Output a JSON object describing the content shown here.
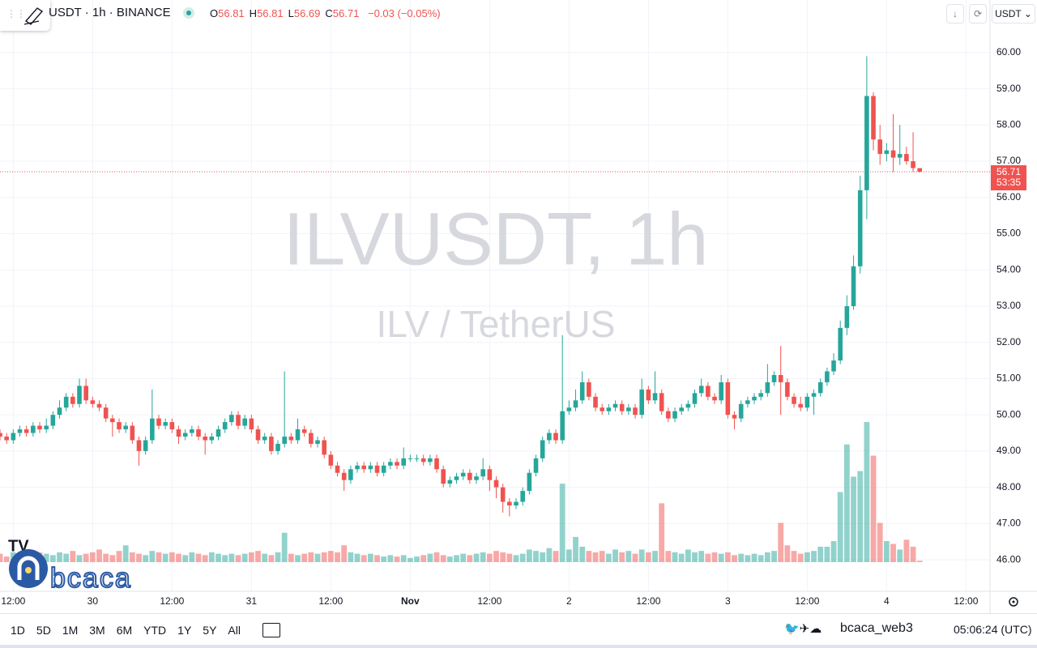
{
  "header": {
    "symbol": "USDT · 1h · BINANCE",
    "ohlc_labels": [
      "O",
      "H",
      "L",
      "C"
    ],
    "change": "−0.03 (−0.05%)",
    "currency": "USDT"
  },
  "watermark": {
    "title": "ILVUSDT, 1h",
    "subtitle": "ILV / TetherUS"
  },
  "logo": "bcaca",
  "chart_data": {
    "type": "candlestick",
    "up_color": "#26a69a",
    "down_color": "#ef5350",
    "grid": true,
    "countdown": "53:35",
    "ylim": [
      45.13,
      61.45
    ],
    "yticks": [
      {
        "value": 46,
        "label": "46.00"
      },
      {
        "value": 47,
        "label": "47.00"
      },
      {
        "value": 48,
        "label": "48.00"
      },
      {
        "value": 49,
        "label": "49.00"
      },
      {
        "value": 50,
        "label": "50.00"
      },
      {
        "value": 51,
        "label": "51.00"
      },
      {
        "value": 52,
        "label": "52.00"
      },
      {
        "value": 53,
        "label": "53.00"
      },
      {
        "value": 54,
        "label": "54.00"
      },
      {
        "value": 55,
        "label": "55.00"
      },
      {
        "value": 56,
        "label": "56.00"
      },
      {
        "value": 57,
        "label": "57.00"
      },
      {
        "value": 58,
        "label": "58.00"
      },
      {
        "value": 59,
        "label": "59.00"
      },
      {
        "value": 60,
        "label": "60.00"
      }
    ],
    "categories": [
      null,
      null,
      "12:00",
      null,
      null,
      null,
      null,
      null,
      null,
      null,
      null,
      null,
      null,
      null,
      "30",
      null,
      null,
      null,
      null,
      null,
      null,
      null,
      null,
      null,
      null,
      null,
      "12:00",
      null,
      null,
      null,
      null,
      null,
      null,
      null,
      null,
      null,
      null,
      null,
      "31",
      null,
      null,
      null,
      null,
      null,
      null,
      null,
      null,
      null,
      null,
      null,
      "12:00",
      null,
      null,
      null,
      null,
      null,
      null,
      null,
      null,
      null,
      null,
      null,
      "Nov",
      null,
      null,
      null,
      null,
      null,
      null,
      null,
      null,
      null,
      null,
      null,
      "12:00",
      null,
      null,
      null,
      null,
      null,
      null,
      null,
      null,
      null,
      null,
      null,
      "2",
      null,
      null,
      null,
      null,
      null,
      null,
      null,
      null,
      null,
      null,
      null,
      "12:00",
      null,
      null,
      null,
      null,
      null,
      null,
      null,
      null,
      null,
      null,
      null,
      "3",
      null,
      null,
      null,
      null,
      null,
      null,
      null,
      null,
      null,
      null,
      null,
      "12:00",
      null,
      null,
      null,
      null,
      null,
      null,
      null,
      null,
      null,
      null,
      null,
      "4",
      null,
      null,
      null,
      null,
      null,
      null,
      null,
      null,
      null,
      null,
      null,
      "12:00"
    ],
    "candles": [
      [
        49.5,
        49.6,
        49.3,
        49.4
      ],
      [
        49.4,
        49.5,
        49.2,
        49.3
      ],
      [
        49.3,
        49.6,
        49.2,
        49.5
      ],
      [
        49.5,
        49.7,
        49.4,
        49.6
      ],
      [
        49.6,
        49.7,
        49.4,
        49.5
      ],
      [
        49.5,
        49.8,
        49.4,
        49.7
      ],
      [
        49.7,
        49.8,
        49.5,
        49.6
      ],
      [
        49.6,
        49.9,
        49.5,
        49.7
      ],
      [
        49.7,
        50.1,
        49.6,
        50.0
      ],
      [
        50.0,
        50.4,
        49.9,
        50.2
      ],
      [
        50.2,
        50.6,
        50.1,
        50.5
      ],
      [
        50.5,
        50.6,
        50.2,
        50.3
      ],
      [
        50.3,
        51.0,
        50.2,
        50.8
      ],
      [
        50.8,
        51.0,
        50.3,
        50.4
      ],
      [
        50.4,
        50.5,
        50.2,
        50.3
      ],
      [
        50.3,
        50.4,
        50.1,
        50.2
      ],
      [
        50.2,
        50.3,
        49.8,
        49.9
      ],
      [
        49.9,
        50.0,
        49.4,
        49.8
      ],
      [
        49.8,
        49.9,
        49.5,
        49.6
      ],
      [
        49.6,
        49.8,
        49.5,
        49.7
      ],
      [
        49.7,
        49.8,
        49.2,
        49.3
      ],
      [
        49.3,
        49.4,
        48.6,
        49.0
      ],
      [
        49.0,
        49.4,
        48.9,
        49.3
      ],
      [
        49.3,
        50.7,
        49.2,
        49.9
      ],
      [
        49.9,
        50.0,
        49.6,
        49.7
      ],
      [
        49.7,
        49.9,
        49.6,
        49.8
      ],
      [
        49.8,
        49.9,
        49.5,
        49.6
      ],
      [
        49.6,
        49.7,
        49.2,
        49.4
      ],
      [
        49.4,
        49.6,
        49.3,
        49.5
      ],
      [
        49.5,
        49.7,
        49.4,
        49.6
      ],
      [
        49.6,
        49.7,
        49.3,
        49.4
      ],
      [
        49.4,
        49.5,
        48.9,
        49.3
      ],
      [
        49.3,
        49.5,
        49.2,
        49.4
      ],
      [
        49.4,
        49.7,
        49.3,
        49.6
      ],
      [
        49.6,
        49.9,
        49.5,
        49.8
      ],
      [
        49.8,
        50.1,
        49.7,
        50.0
      ],
      [
        50.0,
        50.1,
        49.6,
        49.7
      ],
      [
        49.7,
        50.0,
        49.6,
        49.9
      ],
      [
        49.9,
        50.0,
        49.5,
        49.6
      ],
      [
        49.6,
        49.7,
        49.2,
        49.3
      ],
      [
        49.3,
        49.5,
        49.2,
        49.4
      ],
      [
        49.4,
        49.5,
        48.9,
        49.0
      ],
      [
        49.0,
        49.3,
        48.9,
        49.2
      ],
      [
        49.2,
        51.2,
        49.1,
        49.4
      ],
      [
        49.4,
        49.5,
        49.2,
        49.3
      ],
      [
        49.3,
        49.9,
        49.2,
        49.6
      ],
      [
        49.6,
        49.7,
        49.4,
        49.5
      ],
      [
        49.5,
        49.6,
        49.1,
        49.2
      ],
      [
        49.2,
        49.4,
        49.1,
        49.3
      ],
      [
        49.3,
        49.4,
        48.8,
        48.9
      ],
      [
        48.9,
        49.0,
        48.5,
        48.6
      ],
      [
        48.6,
        48.7,
        48.3,
        48.4
      ],
      [
        48.4,
        48.5,
        47.9,
        48.2
      ],
      [
        48.2,
        48.6,
        48.1,
        48.5
      ],
      [
        48.5,
        48.7,
        48.4,
        48.6
      ],
      [
        48.6,
        48.7,
        48.4,
        48.5
      ],
      [
        48.5,
        48.7,
        48.4,
        48.6
      ],
      [
        48.6,
        48.7,
        48.3,
        48.4
      ],
      [
        48.4,
        48.7,
        48.3,
        48.6
      ],
      [
        48.6,
        48.8,
        48.5,
        48.7
      ],
      [
        48.7,
        48.8,
        48.5,
        48.6
      ],
      [
        48.6,
        49.1,
        48.5,
        48.8
      ],
      [
        48.8,
        48.9,
        48.7,
        48.8
      ],
      [
        48.8,
        48.9,
        48.7,
        48.8
      ],
      [
        48.8,
        48.9,
        48.6,
        48.7
      ],
      [
        48.7,
        48.9,
        48.6,
        48.8
      ],
      [
        48.8,
        48.9,
        48.4,
        48.5
      ],
      [
        48.5,
        48.6,
        48.0,
        48.1
      ],
      [
        48.1,
        48.3,
        48.0,
        48.2
      ],
      [
        48.2,
        48.4,
        48.1,
        48.3
      ],
      [
        48.3,
        48.5,
        48.2,
        48.4
      ],
      [
        48.4,
        48.5,
        48.1,
        48.2
      ],
      [
        48.2,
        48.4,
        48.1,
        48.3
      ],
      [
        48.3,
        48.8,
        48.2,
        48.5
      ],
      [
        48.5,
        48.6,
        47.9,
        48.2
      ],
      [
        48.2,
        48.3,
        47.7,
        48.0
      ],
      [
        48.0,
        48.1,
        47.3,
        47.6
      ],
      [
        47.6,
        47.7,
        47.2,
        47.5
      ],
      [
        47.5,
        47.7,
        47.4,
        47.6
      ],
      [
        47.6,
        48.0,
        47.5,
        47.9
      ],
      [
        47.9,
        48.5,
        47.8,
        48.4
      ],
      [
        48.4,
        48.9,
        48.3,
        48.8
      ],
      [
        48.8,
        49.4,
        48.7,
        49.3
      ],
      [
        49.3,
        49.6,
        49.2,
        49.5
      ],
      [
        49.5,
        49.6,
        49.2,
        49.3
      ],
      [
        49.3,
        52.2,
        49.2,
        50.1
      ],
      [
        50.1,
        50.4,
        50.0,
        50.2
      ],
      [
        50.2,
        50.7,
        50.1,
        50.4
      ],
      [
        50.4,
        51.2,
        50.3,
        50.9
      ],
      [
        50.9,
        51.0,
        50.4,
        50.5
      ],
      [
        50.5,
        50.6,
        50.1,
        50.2
      ],
      [
        50.2,
        50.3,
        50.0,
        50.1
      ],
      [
        50.1,
        50.3,
        50.0,
        50.2
      ],
      [
        50.2,
        50.4,
        50.1,
        50.3
      ],
      [
        50.3,
        50.4,
        50.0,
        50.1
      ],
      [
        50.1,
        50.3,
        50.0,
        50.2
      ],
      [
        50.2,
        50.3,
        49.9,
        50.0
      ],
      [
        50.0,
        51.0,
        49.9,
        50.7
      ],
      [
        50.7,
        50.8,
        50.3,
        50.4
      ],
      [
        50.4,
        51.2,
        50.3,
        50.6
      ],
      [
        50.6,
        50.7,
        50.0,
        50.1
      ],
      [
        50.1,
        50.2,
        49.8,
        49.9
      ],
      [
        49.9,
        50.2,
        49.8,
        50.1
      ],
      [
        50.1,
        50.3,
        50.0,
        50.2
      ],
      [
        50.2,
        50.4,
        50.1,
        50.3
      ],
      [
        50.3,
        50.7,
        50.2,
        50.6
      ],
      [
        50.6,
        51.0,
        50.5,
        50.8
      ],
      [
        50.8,
        50.9,
        50.4,
        50.5
      ],
      [
        50.5,
        50.6,
        50.3,
        50.4
      ],
      [
        50.4,
        51.1,
        50.3,
        50.9
      ],
      [
        50.9,
        51.0,
        49.9,
        50.0
      ],
      [
        50.0,
        50.1,
        49.6,
        49.9
      ],
      [
        49.9,
        50.4,
        49.8,
        50.3
      ],
      [
        50.3,
        50.5,
        50.2,
        50.4
      ],
      [
        50.4,
        50.6,
        50.3,
        50.5
      ],
      [
        50.5,
        50.7,
        50.4,
        50.6
      ],
      [
        50.6,
        51.4,
        50.5,
        50.9
      ],
      [
        50.9,
        51.2,
        50.8,
        51.1
      ],
      [
        51.1,
        51.9,
        50.0,
        50.9
      ],
      [
        50.9,
        51.0,
        50.4,
        50.5
      ],
      [
        50.5,
        50.6,
        50.2,
        50.3
      ],
      [
        50.3,
        50.5,
        50.1,
        50.2
      ],
      [
        50.2,
        50.6,
        50.1,
        50.5
      ],
      [
        50.5,
        50.7,
        50.0,
        50.6
      ],
      [
        50.6,
        51.0,
        50.5,
        50.9
      ],
      [
        50.9,
        51.3,
        50.8,
        51.2
      ],
      [
        51.2,
        51.7,
        51.1,
        51.5
      ],
      [
        51.5,
        52.6,
        51.4,
        52.4
      ],
      [
        52.4,
        53.3,
        52.2,
        53.0
      ],
      [
        53.0,
        54.4,
        52.9,
        54.1
      ],
      [
        54.1,
        56.6,
        53.9,
        56.2
      ],
      [
        56.2,
        59.9,
        55.4,
        58.8
      ],
      [
        58.8,
        58.9,
        57.3,
        57.6
      ],
      [
        57.6,
        58.0,
        56.9,
        57.2
      ],
      [
        57.2,
        57.5,
        57.0,
        57.3
      ],
      [
        57.3,
        58.3,
        56.7,
        57.1
      ],
      [
        57.1,
        58.0,
        56.9,
        57.2
      ],
      [
        57.2,
        57.4,
        56.9,
        57.0
      ],
      [
        57.0,
        57.8,
        56.7,
        56.81
      ],
      [
        56.81,
        56.81,
        56.69,
        56.71
      ],
      null,
      null,
      null,
      null,
      null,
      null,
      null
    ],
    "volume": [
      6,
      4,
      7,
      5,
      6,
      8,
      7,
      6,
      5,
      7,
      6,
      8,
      5,
      6,
      7,
      9,
      6,
      5,
      8,
      12,
      7,
      6,
      5,
      8,
      7,
      6,
      7,
      6,
      5,
      7,
      6,
      5,
      7,
      6,
      5,
      6,
      5,
      6,
      7,
      8,
      6,
      5,
      7,
      21,
      6,
      5,
      6,
      7,
      6,
      7,
      8,
      7,
      12,
      7,
      6,
      5,
      6,
      5,
      4,
      5,
      4,
      5,
      3,
      4,
      5,
      6,
      7,
      5,
      4,
      5,
      6,
      5,
      6,
      7,
      6,
      8,
      7,
      6,
      5,
      6,
      9,
      8,
      7,
      10,
      8,
      56,
      9,
      18,
      11,
      8,
      7,
      8,
      6,
      9,
      7,
      8,
      6,
      9,
      7,
      8,
      42,
      8,
      7,
      6,
      9,
      7,
      8,
      6,
      7,
      6,
      7,
      5,
      6,
      5,
      6,
      5,
      7,
      8,
      28,
      12,
      8,
      6,
      7,
      8,
      11,
      11,
      15,
      50,
      84,
      61,
      65,
      100,
      76,
      28,
      15,
      13,
      9,
      16,
      11,
      1,
      null,
      null,
      null,
      null,
      null,
      null,
      null
    ]
  },
  "toolbar": {
    "ranges": [
      "1D",
      "5D",
      "1M",
      "3M",
      "6M",
      "YTD",
      "1Y",
      "5Y",
      "All"
    ],
    "brand": "bcaca_web3",
    "clock": "05:06:24 (UTC)"
  }
}
